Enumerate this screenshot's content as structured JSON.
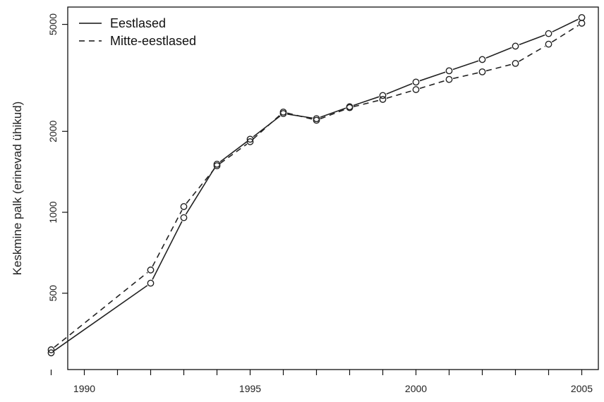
{
  "chart_data": {
    "type": "line",
    "title": "",
    "xlabel": "",
    "ylabel": "Keskmine palk (erinevad ühikud)",
    "y_scale": "log",
    "xlim": [
      1989.5,
      2005.5
    ],
    "ylim": [
      260,
      5800
    ],
    "x_ticks": [
      1989,
      1990,
      1991,
      1992,
      1993,
      1994,
      1995,
      1996,
      1997,
      1998,
      1999,
      2000,
      2001,
      2002,
      2003,
      2004,
      2005
    ],
    "x_tick_labels": [
      {
        "value": 1990,
        "label": "1990"
      },
      {
        "value": 1995,
        "label": "1995"
      },
      {
        "value": 2000,
        "label": "2000"
      },
      {
        "value": 2005,
        "label": "2005"
      }
    ],
    "y_ticks": [
      {
        "value": 500,
        "label": "500"
      },
      {
        "value": 1000,
        "label": "1000"
      },
      {
        "value": 2000,
        "label": "2000"
      },
      {
        "value": 5000,
        "label": "5000"
      }
    ],
    "legend_position": "top-left",
    "grid": false,
    "series": [
      {
        "name": "Eestlased",
        "line_style": "solid",
        "color": "#222222",
        "points": [
          {
            "x": 1989,
            "y": 300
          },
          {
            "x": 1992,
            "y": 545
          },
          {
            "x": 1993,
            "y": 955
          },
          {
            "x": 1994,
            "y": 1510
          },
          {
            "x": 1995,
            "y": 1870
          },
          {
            "x": 1996,
            "y": 2330
          },
          {
            "x": 1997,
            "y": 2230
          },
          {
            "x": 1998,
            "y": 2470
          },
          {
            "x": 1999,
            "y": 2720
          },
          {
            "x": 2000,
            "y": 3050
          },
          {
            "x": 2001,
            "y": 3360
          },
          {
            "x": 2002,
            "y": 3700
          },
          {
            "x": 2003,
            "y": 4150
          },
          {
            "x": 2004,
            "y": 4620
          },
          {
            "x": 2005,
            "y": 5300
          }
        ]
      },
      {
        "name": "Mitte-eestlased",
        "line_style": "dashed",
        "color": "#222222",
        "points": [
          {
            "x": 1989,
            "y": 308
          },
          {
            "x": 1992,
            "y": 610
          },
          {
            "x": 1993,
            "y": 1050
          },
          {
            "x": 1994,
            "y": 1490
          },
          {
            "x": 1995,
            "y": 1830
          },
          {
            "x": 1996,
            "y": 2360
          },
          {
            "x": 1997,
            "y": 2200
          },
          {
            "x": 1998,
            "y": 2450
          },
          {
            "x": 1999,
            "y": 2630
          },
          {
            "x": 2000,
            "y": 2860
          },
          {
            "x": 2001,
            "y": 3120
          },
          {
            "x": 2002,
            "y": 3330
          },
          {
            "x": 2003,
            "y": 3580
          },
          {
            "x": 2004,
            "y": 4220
          },
          {
            "x": 2005,
            "y": 5050
          }
        ]
      }
    ]
  }
}
